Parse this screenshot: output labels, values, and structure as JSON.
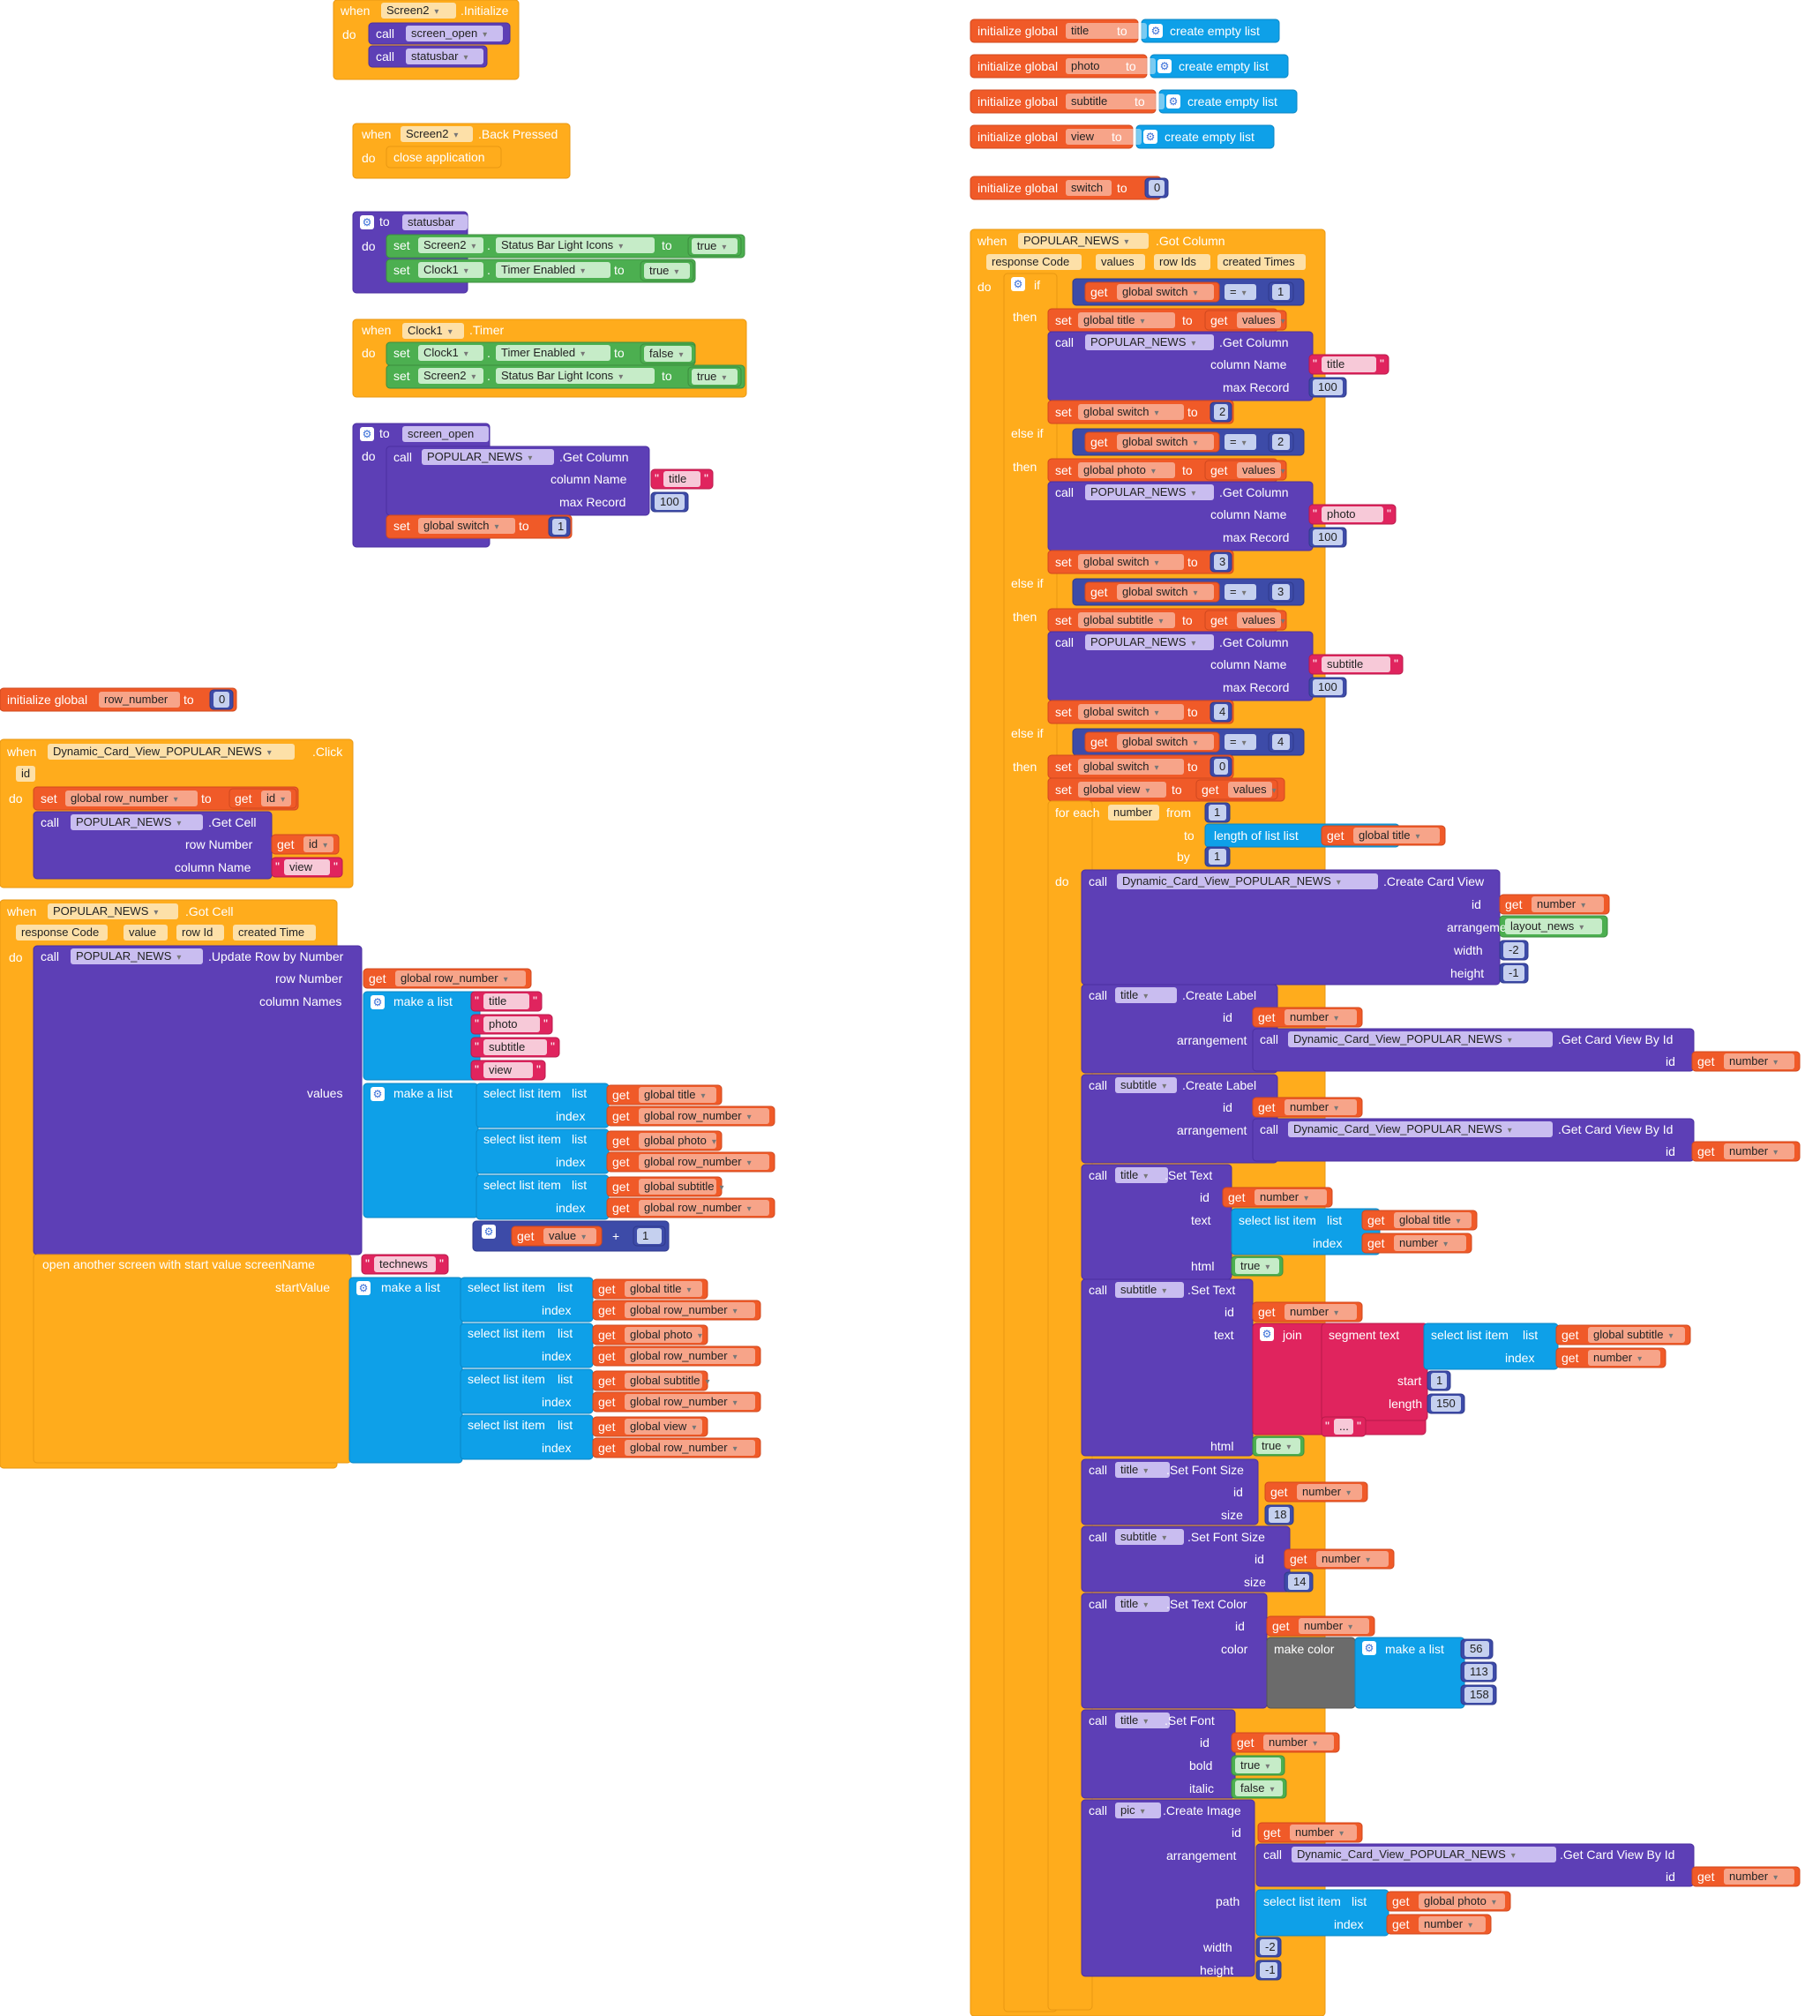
{
  "k": {
    "when": "when",
    "do": "do",
    "call": "call",
    "set": "set",
    "to": "to",
    "get": "get",
    "if": "if",
    "then": "then",
    "elseif": "else if",
    "foreach": "for each",
    "from": "from",
    "by": "by",
    "id": "id",
    "width": "width",
    "height": "height",
    "index": "index",
    "text": "text",
    "html": "html",
    "size": "size",
    "arrangement": "arrangement",
    "column_name": "column Name",
    "max_record": "max Record",
    "row_number": "row Number",
    "column_names": "column Names",
    "values": "values",
    "select_list_item": "select list item",
    "list": "list",
    "make_a_list": "make a list",
    "create_empty_list": "create empty list",
    "initialize_global": "initialize global",
    "eq": "=",
    "plus": "+",
    "q": "\"",
    "comma_dot": "."
  },
  "n": {
    "title": "title",
    "photo": "photo",
    "subtitle": "subtitle",
    "view": "view",
    "switch": "switch",
    "row_number": "row_number",
    "true": "true",
    "false": "false",
    "n0": "0",
    "n1": "1",
    "n2": "2",
    "n3": "3",
    "n4": "4",
    "n100": "100",
    "n150": "150",
    "n18": "18",
    "n14": "14",
    "nm2": "-2",
    "nm1": "-1",
    "n56": "56",
    "n113": "113",
    "n158": "158",
    "dots": "...",
    "technews": "technews"
  },
  "b1": {
    "screen": "Screen2",
    "event": ".Initialize",
    "call1": "screen_open",
    "call2": "statusbar"
  },
  "b2": {
    "screen": "Screen2",
    "event": ".Back Pressed",
    "action": "close application"
  },
  "b3": {
    "proc": "statusbar",
    "s1": "Screen2",
    "p1": "Status Bar Light Icons",
    "s2": "Clock1",
    "p2": "Timer Enabled"
  },
  "b4": {
    "comp": "Clock1",
    "event": ".Timer",
    "s1": "Clock1",
    "p1": "Timer Enabled",
    "s2": "Screen2",
    "p2": "Status Bar Light Icons"
  },
  "b5": {
    "proc": "screen_open",
    "comp": "POPULAR_NEWS",
    "method": ".Get Column",
    "var": "global switch"
  },
  "g": {
    "row": "row_number"
  },
  "b6": {
    "comp": "Dynamic_Card_View_POPULAR_NEWS",
    "event": ".Click",
    "param": "id",
    "var": "global row_number",
    "comp2": "POPULAR_NEWS",
    "method": ".Get Cell"
  },
  "b7": {
    "comp": "POPULAR_NEWS",
    "event": ".Got Cell",
    "p1": "response Code",
    "p2": "value",
    "p3": "row Id",
    "p4": "created Time",
    "method": ".Update Row by Number",
    "g_row": "global row_number",
    "g_title": "global title",
    "g_photo": "global photo",
    "g_subtitle": "global subtitle",
    "g_view": "global view",
    "value": "value",
    "open": "open another screen with start value  screenName",
    "start": "startValue"
  },
  "b8": {
    "comp": "POPULAR_NEWS",
    "event": ".Got Column",
    "p1": "response Code",
    "p2": "values",
    "p3": "row Ids",
    "p4": "created Times",
    "g_switch": "global switch",
    "g_title": "global title",
    "g_photo": "global photo",
    "g_subtitle": "global subtitle",
    "g_view": "global view",
    "values": "values",
    "number": "number",
    "length": "length of list  list",
    "dcv": "Dynamic_Card_View_POPULAR_NEWS",
    "create_card": ".Create Card View",
    "layout": "layout_news",
    "create_label": ".Create Label",
    "get_card": ".Get Card View By Id",
    "set_text": ".Set Text",
    "join": "join",
    "segment": "segment  text",
    "start": "start",
    "length2": "length",
    "set_font_size": ".Set Font Size",
    "set_text_color": ".Set Text Color",
    "color": "color",
    "make_color": "make color",
    "set_font": ".Set Font",
    "bold": "bold",
    "italic": "italic",
    "pic": "pic",
    "create_image": ".Create Image",
    "path": "path",
    "getcol": ".Get Column"
  }
}
